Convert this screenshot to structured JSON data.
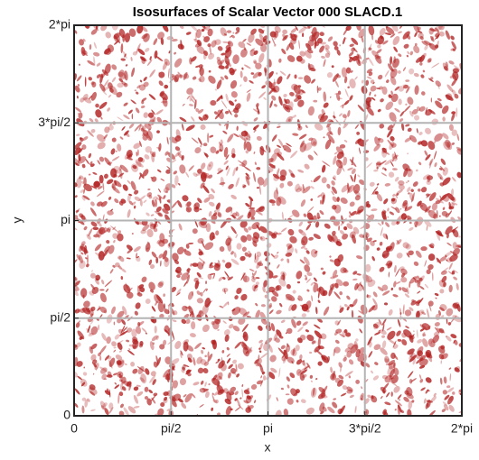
{
  "chart_data": {
    "type": "surface",
    "title": "Isosurfaces of Scalar Vector 000 SLACD.1",
    "xlabel": "x",
    "ylabel": "y",
    "color": "#b22222",
    "grid": true,
    "xlim": [
      0,
      6.2832
    ],
    "ylim": [
      0,
      6.2832
    ],
    "xticks": [
      0,
      {
        "value": 1.5708,
        "label": "pi/2"
      },
      {
        "value": 3.1416,
        "label": "pi"
      },
      {
        "value": 4.7124,
        "label": "3*pi/2"
      },
      {
        "value": 6.2832,
        "label": "2*pi"
      }
    ],
    "yticks": [
      0,
      {
        "value": 1.5708,
        "label": "pi/2"
      },
      {
        "value": 3.1416,
        "label": "pi"
      },
      {
        "value": 4.7124,
        "label": "3*pi/2"
      },
      {
        "value": 6.2832,
        "label": "2*pi"
      }
    ]
  }
}
